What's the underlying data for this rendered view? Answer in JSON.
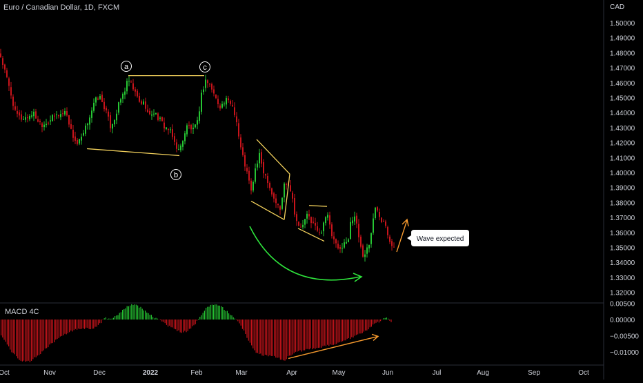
{
  "header": {
    "title": "Euro / Canadian Dollar, 1D, FXCM",
    "currency": "CAD"
  },
  "macd_panel": {
    "title": "MACD 4C"
  },
  "annotations": {
    "point_labels": [
      "a",
      "c",
      "b"
    ],
    "callout": "Wave expected"
  },
  "colors": {
    "background": "#000000",
    "up": "#26c533",
    "down": "#c8141b",
    "pattern_line": "#f3d15c",
    "arrow_green": "#2ee33c",
    "arrow_orange": "#f79a2e",
    "axis_text": "#d1d4dc",
    "divider": "#2a2e39"
  },
  "chart_data": [
    {
      "type": "candlestick",
      "title": "Euro / Canadian Dollar, 1D, FXCM",
      "y_axis_label": "CAD",
      "x_ticks": [
        "Oct",
        "Nov",
        "Dec",
        "2022",
        "Feb",
        "Mar",
        "Apr",
        "May",
        "Jun",
        "Jul",
        "Aug",
        "Sep",
        "Oct"
      ],
      "y_ticks": [
        "1.50000",
        "1.49000",
        "1.48000",
        "1.47000",
        "1.46000",
        "1.45000",
        "1.44000",
        "1.43000",
        "1.42000",
        "1.41000",
        "1.40000",
        "1.39000",
        "1.38000",
        "1.37000",
        "1.36000",
        "1.35000",
        "1.34000",
        "1.33000",
        "1.32000"
      ],
      "ylim": [
        1.3187,
        1.5037
      ],
      "close_path": [
        [
          0,
          1.479
        ],
        [
          8,
          1.466
        ],
        [
          16,
          1.452
        ],
        [
          22,
          1.44
        ],
        [
          30,
          1.436
        ],
        [
          40,
          1.437
        ],
        [
          48,
          1.44
        ],
        [
          56,
          1.434
        ],
        [
          62,
          1.432
        ],
        [
          72,
          1.435
        ],
        [
          80,
          1.438
        ],
        [
          88,
          1.439
        ],
        [
          96,
          1.441
        ],
        [
          104,
          1.426
        ],
        [
          112,
          1.419
        ],
        [
          120,
          1.424
        ],
        [
          130,
          1.438
        ],
        [
          138,
          1.448
        ],
        [
          144,
          1.451
        ],
        [
          152,
          1.443
        ],
        [
          160,
          1.431
        ],
        [
          166,
          1.436
        ],
        [
          174,
          1.448
        ],
        [
          180,
          1.454
        ],
        [
          186,
          1.462
        ],
        [
          194,
          1.455
        ],
        [
          202,
          1.447
        ],
        [
          210,
          1.446
        ],
        [
          216,
          1.437
        ],
        [
          222,
          1.441
        ],
        [
          230,
          1.436
        ],
        [
          238,
          1.431
        ],
        [
          246,
          1.428
        ],
        [
          254,
          1.419
        ],
        [
          260,
          1.414
        ],
        [
          266,
          1.424
        ],
        [
          272,
          1.432
        ],
        [
          280,
          1.428
        ],
        [
          286,
          1.433
        ],
        [
          292,
          1.452
        ],
        [
          298,
          1.462
        ],
        [
          306,
          1.457
        ],
        [
          314,
          1.448
        ],
        [
          320,
          1.444
        ],
        [
          328,
          1.448
        ],
        [
          336,
          1.446
        ],
        [
          342,
          1.437
        ],
        [
          348,
          1.418
        ],
        [
          354,
          1.407
        ],
        [
          360,
          1.396
        ],
        [
          364,
          1.387
        ],
        [
          370,
          1.402
        ],
        [
          376,
          1.411
        ],
        [
          382,
          1.401
        ],
        [
          388,
          1.395
        ],
        [
          394,
          1.386
        ],
        [
          400,
          1.38
        ],
        [
          406,
          1.375
        ],
        [
          412,
          1.392
        ],
        [
          416,
          1.394
        ],
        [
          422,
          1.388
        ],
        [
          428,
          1.371
        ],
        [
          434,
          1.362
        ],
        [
          440,
          1.366
        ],
        [
          446,
          1.372
        ],
        [
          452,
          1.367
        ],
        [
          458,
          1.363
        ],
        [
          464,
          1.358
        ],
        [
          470,
          1.369
        ],
        [
          474,
          1.373
        ],
        [
          480,
          1.359
        ],
        [
          486,
          1.352
        ],
        [
          492,
          1.347
        ],
        [
          498,
          1.354
        ],
        [
          504,
          1.352
        ],
        [
          508,
          1.368
        ],
        [
          514,
          1.371
        ],
        [
          520,
          1.357
        ],
        [
          526,
          1.344
        ],
        [
          530,
          1.347
        ],
        [
          536,
          1.354
        ],
        [
          540,
          1.366
        ],
        [
          544,
          1.376
        ],
        [
          548,
          1.375
        ],
        [
          552,
          1.369
        ],
        [
          558,
          1.368
        ],
        [
          564,
          1.356
        ],
        [
          570,
          1.35
        ]
      ],
      "patterns": {
        "top_line": [
          [
            1.4647,
            186
          ],
          [
            1.4647,
            296
          ]
        ],
        "bottom_line": [
          [
            1.4159,
            126
          ],
          [
            1.4113,
            260
          ]
        ],
        "left_flag_upper": [
          [
            1.4221,
            372
          ],
          [
            1.399,
            420
          ]
        ],
        "left_flag_right": [
          [
            1.399,
            420
          ],
          [
            1.3685,
            412
          ]
        ],
        "left_flag_lower": [
          [
            1.3685,
            412
          ],
          [
            1.3809,
            364
          ]
        ],
        "right_flag_upper": [
          [
            1.378,
            448
          ],
          [
            1.3774,
            474
          ]
        ],
        "right_flag_lower": [
          [
            1.3627,
            432
          ],
          [
            1.3541,
            470
          ]
        ]
      }
    },
    {
      "type": "bar",
      "title": "MACD 4C",
      "y_ticks": [
        "0.00500",
        "0.00000",
        "-0.00500",
        "-0.01000"
      ],
      "ylim": [
        -0.0135,
        0.0055
      ],
      "histogram_path": [
        [
          0,
          -0.0045
        ],
        [
          15,
          -0.0095
        ],
        [
          30,
          -0.0128
        ],
        [
          42,
          -0.013
        ],
        [
          55,
          -0.011
        ],
        [
          70,
          -0.0082
        ],
        [
          85,
          -0.0055
        ],
        [
          100,
          -0.0038
        ],
        [
          112,
          -0.003
        ],
        [
          122,
          -0.0027
        ],
        [
          130,
          -0.0028
        ],
        [
          138,
          -0.0025
        ],
        [
          146,
          -0.001
        ],
        [
          152,
          0.0005
        ],
        [
          160,
          0.0001
        ],
        [
          170,
          0.0015
        ],
        [
          180,
          0.0035
        ],
        [
          190,
          0.0048
        ],
        [
          198,
          0.0044
        ],
        [
          208,
          0.003
        ],
        [
          220,
          0.001
        ],
        [
          232,
          -0.0004
        ],
        [
          242,
          -0.0018
        ],
        [
          252,
          -0.003
        ],
        [
          262,
          -0.004
        ],
        [
          272,
          -0.0035
        ],
        [
          282,
          -0.0015
        ],
        [
          290,
          0.001
        ],
        [
          298,
          0.0034
        ],
        [
          308,
          0.0047
        ],
        [
          316,
          0.0045
        ],
        [
          326,
          0.003
        ],
        [
          336,
          0.0012
        ],
        [
          344,
          -0.0005
        ],
        [
          354,
          -0.004
        ],
        [
          362,
          -0.0075
        ],
        [
          370,
          -0.01
        ],
        [
          380,
          -0.011
        ],
        [
          392,
          -0.0112
        ],
        [
          402,
          -0.0118
        ],
        [
          412,
          -0.0125
        ],
        [
          420,
          -0.011
        ],
        [
          432,
          -0.0098
        ],
        [
          446,
          -0.0092
        ],
        [
          460,
          -0.0088
        ],
        [
          476,
          -0.008
        ],
        [
          490,
          -0.0072
        ],
        [
          506,
          -0.0058
        ],
        [
          520,
          -0.0045
        ],
        [
          532,
          -0.003
        ],
        [
          542,
          -0.0015
        ],
        [
          550,
          -0.0005
        ],
        [
          556,
          0.0006
        ],
        [
          562,
          0.0003
        ],
        [
          568,
          -0.0013
        ]
      ],
      "divergence_arrow": [
        [
          -0.012,
          418
        ],
        [
          -0.0052,
          548
        ]
      ]
    }
  ]
}
